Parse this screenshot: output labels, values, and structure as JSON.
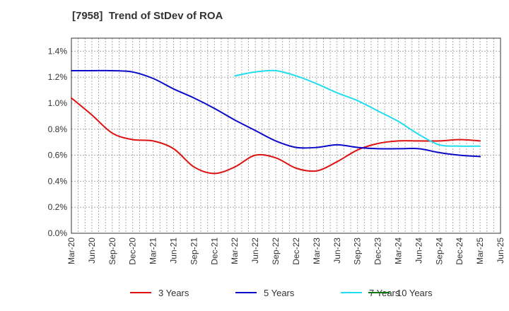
{
  "chart_data": {
    "type": "line",
    "title": "[7958]  Trend of StDev of ROA",
    "xlabel": "",
    "ylabel": "",
    "x": [
      "Mar-20",
      "Jun-20",
      "Sep-20",
      "Dec-20",
      "Mar-21",
      "Jun-21",
      "Sep-21",
      "Dec-21",
      "Mar-22",
      "Jun-22",
      "Sep-22",
      "Dec-22",
      "Mar-23",
      "Jun-23",
      "Sep-23",
      "Dec-23",
      "Mar-24",
      "Jun-24",
      "Sep-24",
      "Dec-24",
      "Mar-25",
      "Jun-25"
    ],
    "y_ticks": [
      "0.0%",
      "0.2%",
      "0.4%",
      "0.6%",
      "0.8%",
      "1.0%",
      "1.2%",
      "1.4%"
    ],
    "ylim": [
      0,
      1.5
    ],
    "grid": true,
    "legend_position": "bottom",
    "colors": {
      "3y": "#dd1111",
      "5y": "#0a0ac8",
      "7y": "#22ddee",
      "10y": "#117711",
      "grid": "#aaaaaa",
      "axis": "#333333"
    },
    "series": [
      {
        "name": "3 Years",
        "color": "#dd1111",
        "values": [
          1.04,
          0.91,
          0.77,
          0.72,
          0.71,
          0.65,
          0.51,
          0.46,
          0.51,
          0.6,
          0.58,
          0.5,
          0.48,
          0.55,
          0.64,
          0.69,
          0.71,
          0.71,
          0.71,
          0.72,
          0.71,
          null
        ]
      },
      {
        "name": "5 Years",
        "color": "#0a0ac8",
        "values": [
          1.25,
          1.25,
          1.25,
          1.24,
          1.19,
          1.11,
          1.04,
          0.96,
          0.87,
          0.79,
          0.71,
          0.66,
          0.66,
          0.68,
          0.66,
          0.65,
          0.65,
          0.65,
          0.62,
          0.6,
          0.59,
          null
        ]
      },
      {
        "name": "7 Years",
        "color": "#22ddee",
        "values": [
          null,
          null,
          null,
          null,
          null,
          null,
          null,
          null,
          1.21,
          1.24,
          1.25,
          1.21,
          1.15,
          1.08,
          1.02,
          0.94,
          0.86,
          0.76,
          0.68,
          0.67,
          0.67,
          null
        ]
      },
      {
        "name": "10 Years",
        "color": "#117711",
        "values": [
          null,
          null,
          null,
          null,
          null,
          null,
          null,
          null,
          null,
          null,
          null,
          null,
          null,
          null,
          null,
          null,
          null,
          null,
          null,
          null,
          null,
          null
        ]
      }
    ]
  }
}
